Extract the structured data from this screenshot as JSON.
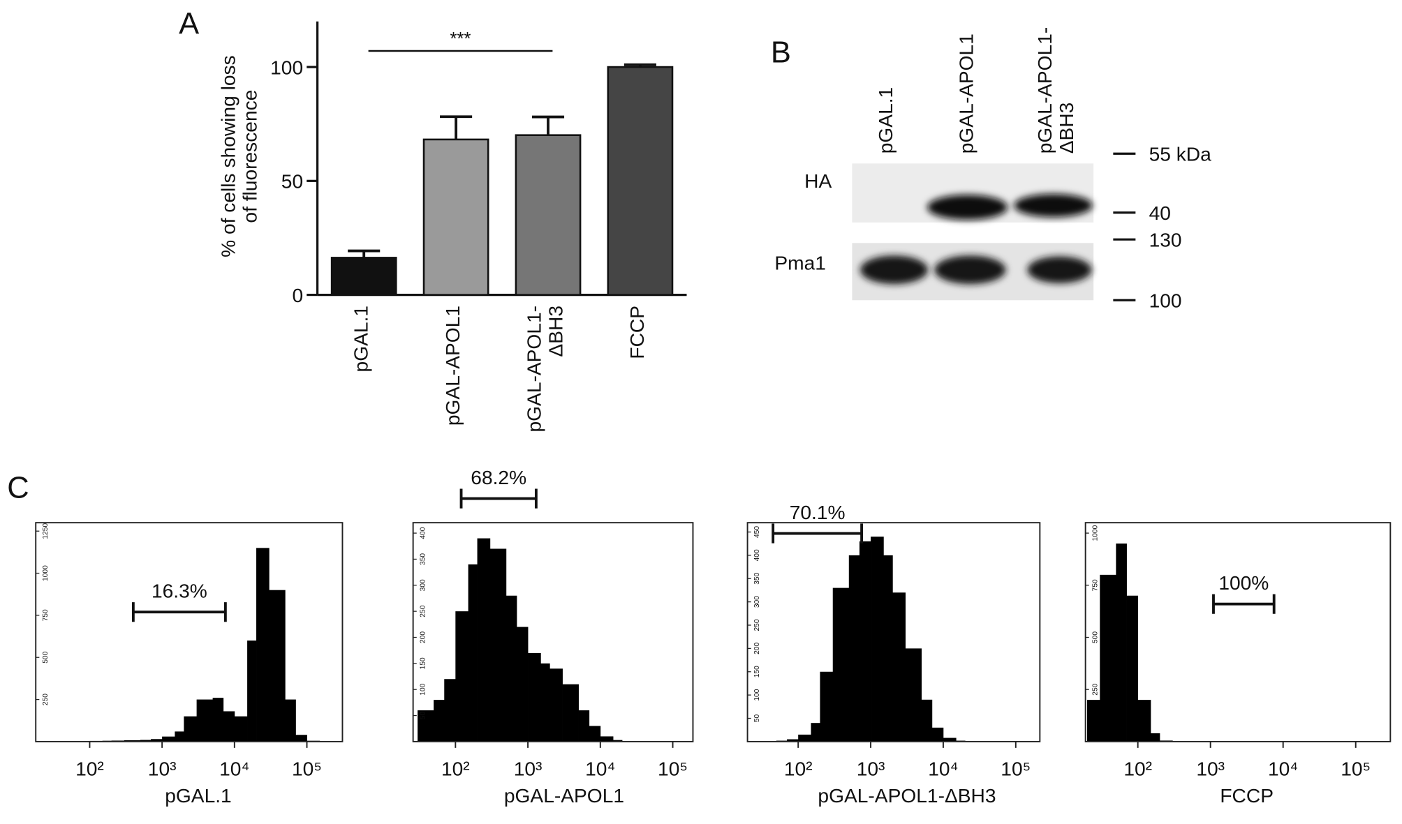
{
  "panel_labels": [
    "A",
    "B",
    "C"
  ],
  "chart_data": [
    {
      "type": "bar",
      "ylabel": "% of cells showing loss\nof fluorescence",
      "categories": [
        "pGAL.1",
        "pGAL-APOL1",
        "pGAL-APOL1-\nΔBH3",
        "FCCP"
      ],
      "values": [
        16.3,
        68.2,
        70.1,
        100
      ],
      "errors": [
        3,
        10,
        8,
        1
      ],
      "colors": [
        "#111111",
        "#9a9a9a",
        "#767676",
        "#454545"
      ],
      "ylim": [
        0,
        120
      ],
      "yticks": [
        0,
        50,
        100
      ],
      "annotation": "***"
    },
    {
      "type": "histogram",
      "xlabel": "pGAL.1",
      "log_x": true,
      "color": "#000000",
      "bins": [
        20,
        30,
        50,
        70,
        100,
        150,
        200,
        300,
        500,
        700,
        1000,
        1500,
        2000,
        3000,
        5000,
        7000,
        10000,
        15000,
        20000,
        30000,
        50000,
        70000,
        100000,
        150000,
        200000
      ],
      "counts": [
        0,
        0,
        2,
        3,
        4,
        5,
        6,
        8,
        10,
        15,
        30,
        60,
        150,
        250,
        260,
        180,
        150,
        600,
        1150,
        900,
        250,
        40,
        5,
        0
      ],
      "xlim": [
        18,
        310000
      ],
      "ylim": [
        0,
        1300
      ],
      "yticks": [
        250,
        500,
        750,
        1000,
        1250
      ],
      "xticks": [
        {
          "value": 100,
          "label": "10²"
        },
        {
          "value": 1000,
          "label": "10³"
        },
        {
          "value": 10000,
          "label": "10⁴"
        },
        {
          "value": 100000,
          "label": "10⁵"
        }
      ],
      "gate_label": "16.3%",
      "gate_range": [
        400,
        7500
      ]
    },
    {
      "type": "histogram",
      "xlabel": "pGAL-APOL1",
      "log_x": true,
      "color": "#000000",
      "bins": [
        30,
        50,
        70,
        100,
        150,
        200,
        300,
        500,
        700,
        1000,
        1500,
        2000,
        3000,
        5000,
        7000,
        10000,
        15000,
        20000,
        30000,
        50000,
        70000,
        100000,
        150000
      ],
      "counts": [
        60,
        80,
        120,
        250,
        340,
        390,
        370,
        280,
        220,
        170,
        150,
        140,
        110,
        60,
        30,
        10,
        3,
        0,
        0,
        0,
        0,
        0
      ],
      "xlim": [
        26,
        190000
      ],
      "ylim": [
        0,
        420
      ],
      "yticks": [
        50,
        100,
        150,
        200,
        250,
        300,
        350,
        400
      ],
      "xticks": [
        {
          "value": 100,
          "label": "10²"
        },
        {
          "value": 1000,
          "label": "10³"
        },
        {
          "value": 10000,
          "label": "10⁴"
        },
        {
          "value": 100000,
          "label": "10⁵"
        }
      ],
      "gate_label": "68.2%",
      "gate_range": [
        120,
        1300
      ]
    },
    {
      "type": "histogram",
      "xlabel": "pGAL-APOL1-ΔBH3",
      "log_x": true,
      "color": "#000000",
      "bins": [
        20,
        30,
        50,
        70,
        100,
        150,
        200,
        300,
        500,
        700,
        1000,
        1500,
        2000,
        3000,
        5000,
        7000,
        10000,
        15000,
        20000,
        30000,
        50000,
        70000,
        100000,
        150000,
        200000
      ],
      "counts": [
        0,
        0,
        2,
        5,
        15,
        40,
        150,
        330,
        400,
        430,
        440,
        400,
        320,
        200,
        90,
        30,
        8,
        2,
        0,
        0,
        0,
        0,
        0,
        0
      ],
      "xlim": [
        20,
        215000
      ],
      "ylim": [
        0,
        470
      ],
      "yticks": [
        50,
        100,
        150,
        200,
        250,
        300,
        350,
        400,
        450
      ],
      "xticks": [
        {
          "value": 100,
          "label": "10²"
        },
        {
          "value": 1000,
          "label": "10³"
        },
        {
          "value": 10000,
          "label": "10⁴"
        },
        {
          "value": 100000,
          "label": "10⁵"
        }
      ],
      "gate_label": "70.1%",
      "gate_range": [
        45,
        750
      ]
    },
    {
      "type": "histogram",
      "xlabel": "FCCP",
      "log_x": true,
      "color": "#000000",
      "bins": [
        20,
        30,
        50,
        70,
        100,
        150,
        200,
        300,
        500,
        700,
        1000,
        1500,
        2000,
        3000,
        5000,
        7000,
        10000,
        15000,
        20000,
        30000,
        50000,
        70000,
        100000,
        150000,
        200000
      ],
      "counts": [
        200,
        800,
        950,
        700,
        200,
        40,
        5,
        0,
        0,
        0,
        0,
        0,
        0,
        0,
        0,
        0,
        0,
        0,
        0,
        0,
        0,
        0,
        0,
        0
      ],
      "xlim": [
        19,
        300000
      ],
      "ylim": [
        0,
        1050
      ],
      "yticks": [
        250,
        500,
        750,
        1000
      ],
      "xticks": [
        {
          "value": 100,
          "label": "10²"
        },
        {
          "value": 1000,
          "label": "10³"
        },
        {
          "value": 10000,
          "label": "10⁴"
        },
        {
          "value": 100000,
          "label": "10⁵"
        }
      ],
      "gate_label": "100%",
      "gate_range": [
        1100,
        7500
      ]
    }
  ],
  "blot": {
    "lanes": [
      "pGAL.1",
      "pGAL-APOL1",
      "pGAL-APOL1-\nΔBH3"
    ],
    "rows": [
      "HA",
      "Pma1"
    ],
    "markers": [
      "55 kDa",
      "40",
      "130",
      "100"
    ]
  }
}
